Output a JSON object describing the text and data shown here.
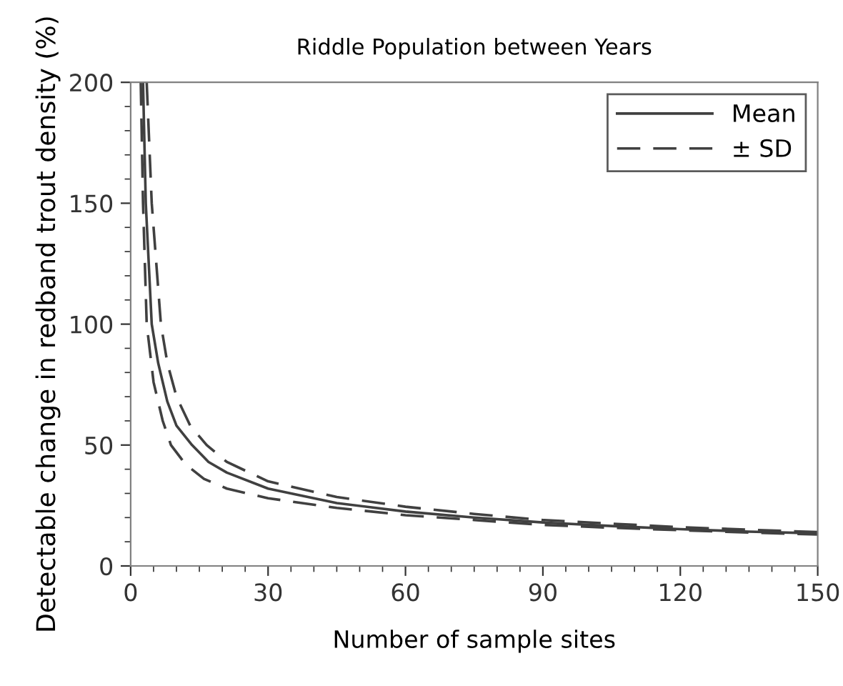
{
  "chart_data": {
    "type": "line",
    "title": "Riddle Population between Years",
    "xlabel": "Number of sample sites",
    "ylabel": "Detectable change in redband trout density (%)",
    "xlim": [
      0,
      150
    ],
    "xticks": [
      0,
      30,
      60,
      90,
      120,
      150
    ],
    "ylim": [
      0,
      200
    ],
    "yticks": [
      0,
      50,
      100,
      150,
      200
    ],
    "grid": false,
    "legend": "top right",
    "marker": "none",
    "series": [
      {
        "name": "Mean",
        "color": "#404040",
        "line_style": "solid",
        "x": [
          2.7,
          3.3,
          4.6,
          6,
          8,
          10,
          13.4,
          17,
          21,
          30,
          45,
          60,
          75,
          90,
          105,
          120,
          135,
          150
        ],
        "values": [
          200,
          150,
          100,
          84,
          68,
          58,
          50,
          43,
          38.6,
          32,
          26,
          22.5,
          20,
          18,
          16.5,
          15.2,
          14.2,
          13.5
        ]
      },
      {
        "name": "± SD",
        "color": "#404040",
        "line_style": "dashed",
        "x": [
          3.5,
          4.6,
          6.6,
          8,
          10,
          13,
          16.6,
          21,
          30,
          45,
          60,
          75,
          90,
          105,
          120,
          135,
          150
        ],
        "values": [
          200,
          150,
          100,
          84,
          70,
          58,
          50,
          43,
          35,
          28.5,
          24.5,
          21.5,
          19,
          17.5,
          16,
          15,
          14
        ]
      },
      {
        "color": "#404040",
        "line_style": "dashed",
        "x": [
          2.2,
          2.7,
          3.5,
          5,
          7,
          8.8,
          12,
          16,
          21,
          30,
          45,
          60,
          75,
          90,
          105,
          120,
          135,
          150
        ],
        "values": [
          200,
          150,
          100,
          76,
          60,
          50,
          42,
          36,
          32,
          28,
          24,
          21,
          19,
          17,
          15.8,
          14.8,
          13.8,
          13
        ]
      }
    ]
  }
}
